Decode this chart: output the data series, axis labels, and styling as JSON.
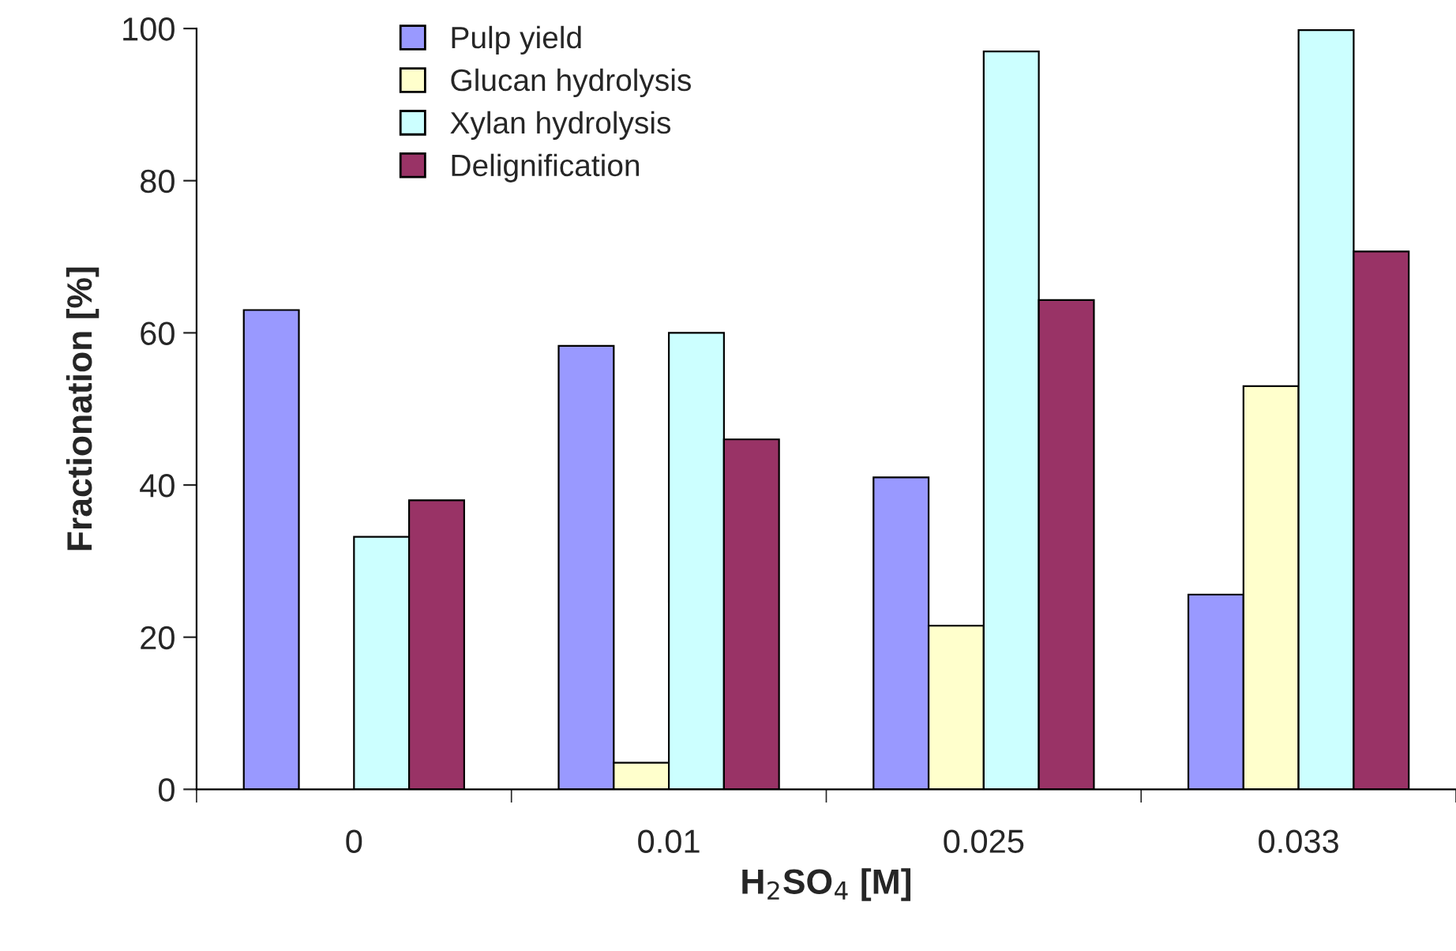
{
  "chart_data": {
    "type": "bar",
    "xlabel": "H$_{2}$SO$_{4}$ [M]",
    "ylabel": "Fractionation [%]",
    "categories": [
      "0",
      "0.01",
      "0.025",
      "0.033"
    ],
    "series": [
      {
        "name": "Pulp yield",
        "color": "#9999ff",
        "values": [
          63,
          58.3,
          41,
          25.6
        ]
      },
      {
        "name": "Glucan hydrolysis",
        "color": "#ffffcc",
        "values": [
          null,
          3.5,
          21.5,
          53
        ]
      },
      {
        "name": "Xylan hydrolysis",
        "color": "#ccffff",
        "values": [
          33.2,
          60,
          97,
          99.8
        ]
      },
      {
        "name": "Delignification",
        "color": "#993366",
        "values": [
          38,
          46,
          64.3,
          70.7
        ]
      }
    ],
    "ylim": [
      0,
      100
    ],
    "yticks": [
      0,
      20,
      40,
      60,
      80,
      100
    ],
    "grid": false,
    "legend": "top left"
  }
}
